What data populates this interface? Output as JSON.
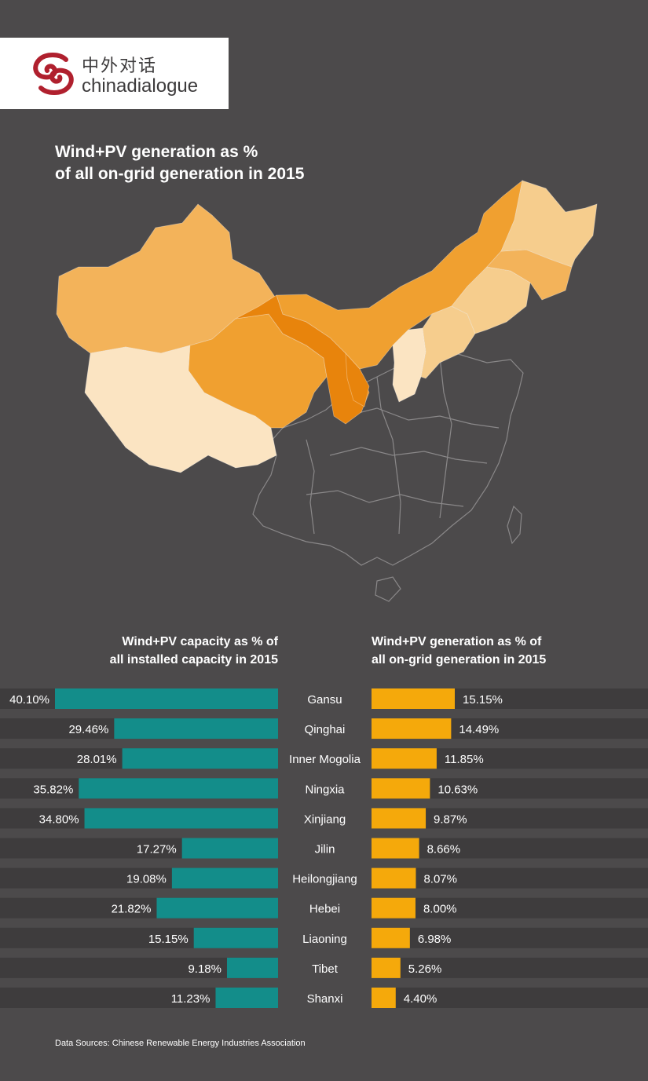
{
  "brand": {
    "name_cn": "中外对话",
    "name_en": "chinadialogue",
    "accent": "#b0202e"
  },
  "map": {
    "title": "Wind+PV generation as % of all on-grid generation in 2015",
    "title_lines": [
      "Wind+PV generation as %",
      "of all on-grid generation in 2015"
    ],
    "colors": {
      "high": "#e8840c",
      "mid_high": "#f0a030",
      "mid": "#f3b35a",
      "low": "#f6cd8d",
      "lowest": "#fbe4c2",
      "outline": "#8a8889"
    }
  },
  "chart_data": [
    {
      "type": "bar",
      "title": "Wind+PV capacity as % of all installed capacity in 2015",
      "title_lines": [
        "Wind+PV capacity as % of",
        "all installed capacity in 2015"
      ],
      "categories": [
        "Gansu",
        "Qinghai",
        "Inner Mogolia",
        "Ningxia",
        "Xinjiang",
        "Jilin",
        "Heilongjiang",
        "Hebei",
        "Liaoning",
        "Tibet",
        "Shanxi"
      ],
      "values": [
        40.1,
        29.46,
        28.01,
        35.82,
        34.8,
        17.27,
        19.08,
        21.82,
        15.15,
        9.18,
        11.23
      ],
      "labels": [
        "40.10%",
        "29.46%",
        "28.01%",
        "35.82%",
        "34.80%",
        "17.27%",
        "19.08%",
        "21.82%",
        "15.15%",
        "9.18%",
        "11.23%"
      ],
      "color": "#138d8a",
      "orientation": "horizontal-leftward"
    },
    {
      "type": "bar",
      "title": "Wind+PV generation as % of all on-grid generation in 2015",
      "title_lines": [
        "Wind+PV generation as % of",
        "all on-grid generation in 2015"
      ],
      "categories": [
        "Gansu",
        "Qinghai",
        "Inner Mogolia",
        "Ningxia",
        "Xinjiang",
        "Jilin",
        "Heilongjiang",
        "Hebei",
        "Liaoning",
        "Tibet",
        "Shanxi"
      ],
      "values": [
        15.15,
        14.49,
        11.85,
        10.63,
        9.87,
        8.66,
        8.07,
        8.0,
        6.98,
        5.26,
        4.4
      ],
      "labels": [
        "15.15%",
        "14.49%",
        "11.85%",
        "10.63%",
        "9.87%",
        "8.66%",
        "8.07%",
        "8.00%",
        "6.98%",
        "5.26%",
        "4.40%"
      ],
      "color": "#f5a90b",
      "orientation": "horizontal-rightward"
    }
  ],
  "footer": {
    "source": "Data Sources: Chinese Renewable Energy Industries Association"
  }
}
